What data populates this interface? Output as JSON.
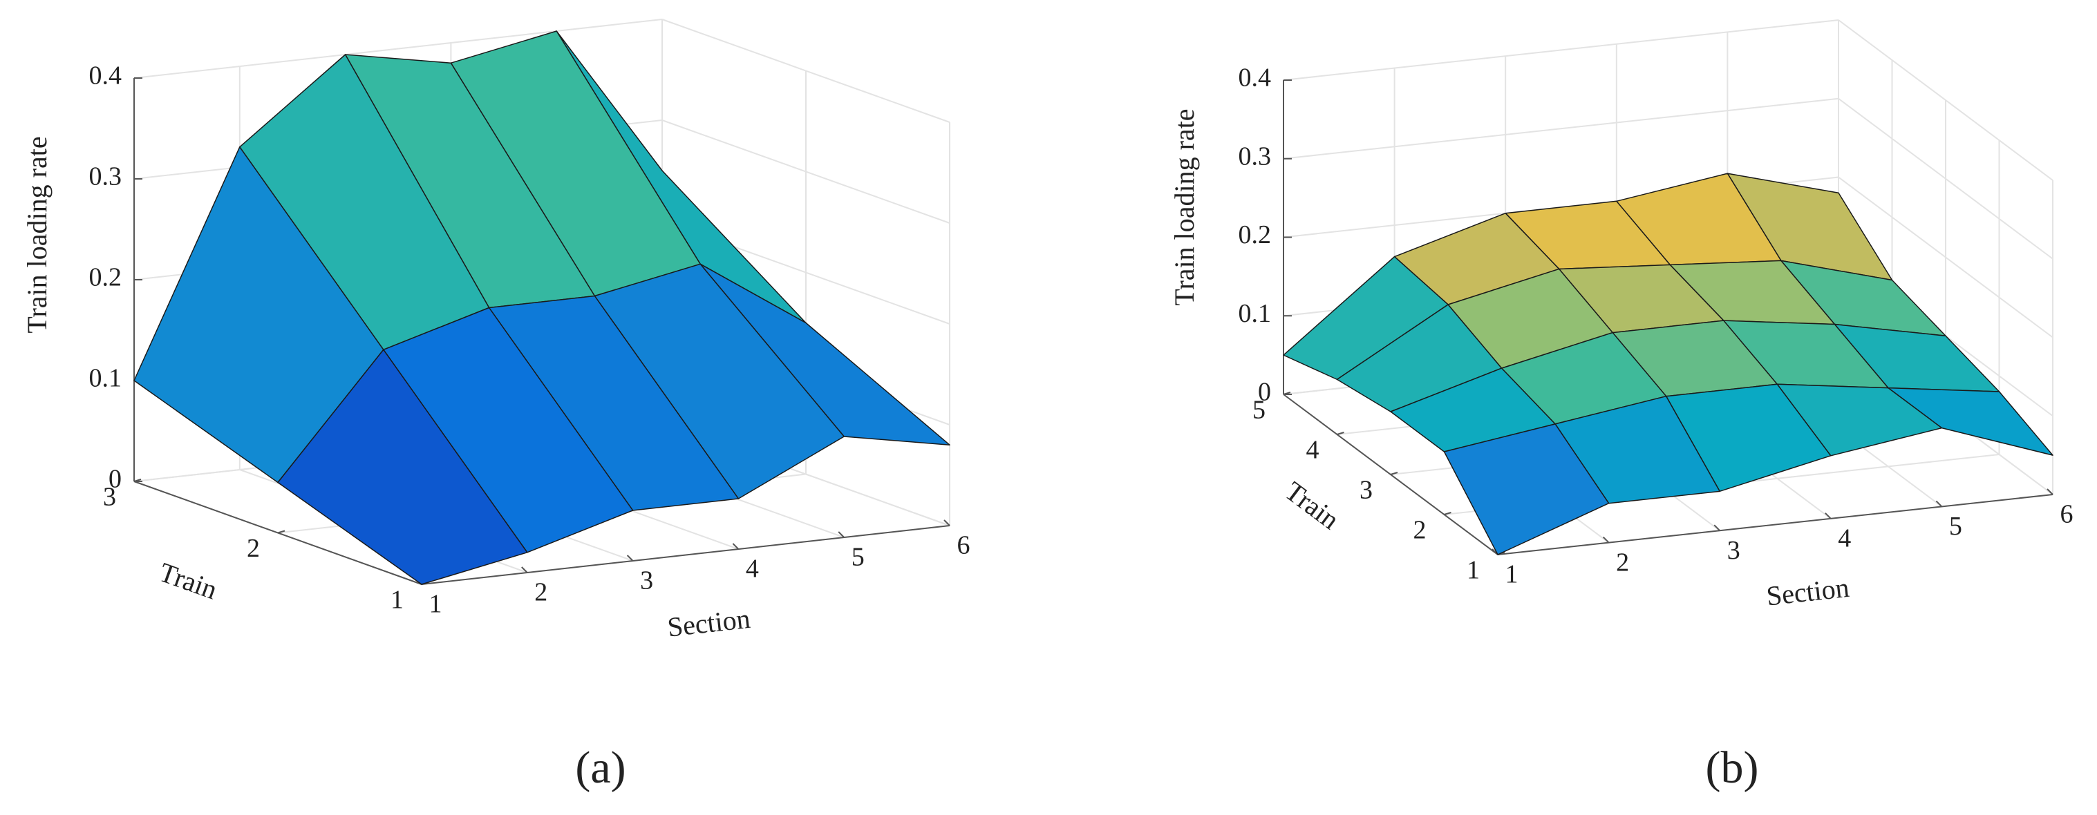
{
  "chart_data": [
    {
      "type": "surface",
      "caption": "(a)",
      "z_label": "Train loading rate",
      "x_label": "Section",
      "y_label": "Train",
      "x": [
        1,
        2,
        3,
        4,
        5,
        6
      ],
      "y": [
        1,
        2,
        3
      ],
      "values": [
        [
          0,
          0.02,
          0.05,
          0.05,
          0.1,
          0.08
        ],
        [
          0.05,
          0.17,
          0.2,
          0.2,
          0.22,
          0.15
        ],
        [
          0.1,
          0.32,
          0.4,
          0.38,
          0.4,
          0.25
        ]
      ],
      "xlim": [
        1,
        6
      ],
      "ylim": [
        1,
        3
      ],
      "zlim": [
        0,
        0.4
      ],
      "xticks": [
        1,
        2,
        3,
        4,
        5,
        6
      ],
      "yticks": [
        1,
        2,
        3
      ],
      "zticks": [
        0,
        0.1,
        0.2,
        0.3,
        0.4
      ],
      "clim": [
        0,
        0.6
      ],
      "grid": true,
      "edge_color": "#1a1a1a"
    },
    {
      "type": "surface",
      "caption": "(b)",
      "z_label": "Train loading rate",
      "x_label": "Section",
      "y_label": "Train",
      "x": [
        1,
        2,
        3,
        4,
        5,
        6
      ],
      "y": [
        1,
        2,
        3,
        4,
        5
      ],
      "values": [
        [
          0,
          0.05,
          0.05,
          0.08,
          0.1,
          0.05
        ],
        [
          0.08,
          0.1,
          0.12,
          0.12,
          0.1,
          0.08
        ],
        [
          0.08,
          0.12,
          0.15,
          0.15,
          0.13,
          0.1
        ],
        [
          0.07,
          0.15,
          0.18,
          0.17,
          0.16,
          0.12
        ],
        [
          0.05,
          0.16,
          0.2,
          0.2,
          0.22,
          0.18
        ]
      ],
      "xlim": [
        1,
        6
      ],
      "ylim": [
        1,
        5
      ],
      "zlim": [
        0,
        0.4
      ],
      "xticks": [
        1,
        2,
        3,
        4,
        5,
        6
      ],
      "yticks": [
        1,
        2,
        3,
        4,
        5
      ],
      "zticks": [
        0,
        0.1,
        0.2,
        0.3,
        0.4
      ],
      "clim": [
        0,
        0.24
      ],
      "grid": true,
      "edge_color": "#1a1a1a"
    }
  ]
}
